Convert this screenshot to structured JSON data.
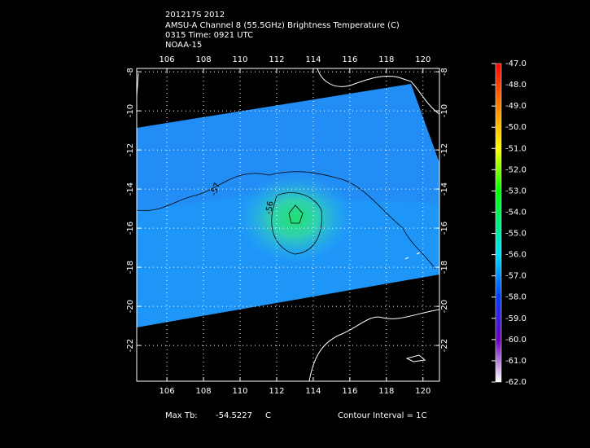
{
  "header": {
    "lines": [
      "201217S 2012",
      "AMSU-A Channel 8 (55.5GHz) Brightness Temperature (C)",
      "0315 Time: 0921 UTC",
      "NOAA-15"
    ]
  },
  "map": {
    "lonlim": [
      104.35,
      120.9
    ],
    "latlim": [
      -7.83,
      -23.83
    ],
    "lon_ticks": [
      106,
      108,
      110,
      112,
      114,
      116,
      118,
      120
    ],
    "lat_ticks": [
      -8,
      -10,
      -12,
      -14,
      -16,
      -18,
      -20,
      -22
    ],
    "contour_labels": [
      "-57",
      "-56"
    ]
  },
  "colorbar": {
    "clim": [
      -62,
      -47
    ],
    "ticks": [
      {
        "value": -47,
        "label": "-47.0"
      },
      {
        "value": -48,
        "label": "-48.0"
      },
      {
        "value": -49,
        "label": "-49.0"
      },
      {
        "value": -50,
        "label": "-50.0"
      },
      {
        "value": -51,
        "label": "-51.0"
      },
      {
        "value": -52,
        "label": "-52.0"
      },
      {
        "value": -53,
        "label": "-53.0"
      },
      {
        "value": -54,
        "label": "-54.0"
      },
      {
        "value": -55,
        "label": "-55.0"
      },
      {
        "value": -56,
        "label": "-56.0"
      },
      {
        "value": -57,
        "label": "-57.0"
      },
      {
        "value": -58,
        "label": "-58.0"
      },
      {
        "value": -59,
        "label": "-59.0"
      },
      {
        "value": -60,
        "label": "-60.0"
      },
      {
        "value": -61,
        "label": "-61.0"
      },
      {
        "value": -62,
        "label": "-62.0"
      }
    ]
  },
  "footer": {
    "max_label": "Max Tb:",
    "max_value": "-54.5227",
    "unit": "C",
    "contour_interval": "Contour Interval = 1C"
  }
}
